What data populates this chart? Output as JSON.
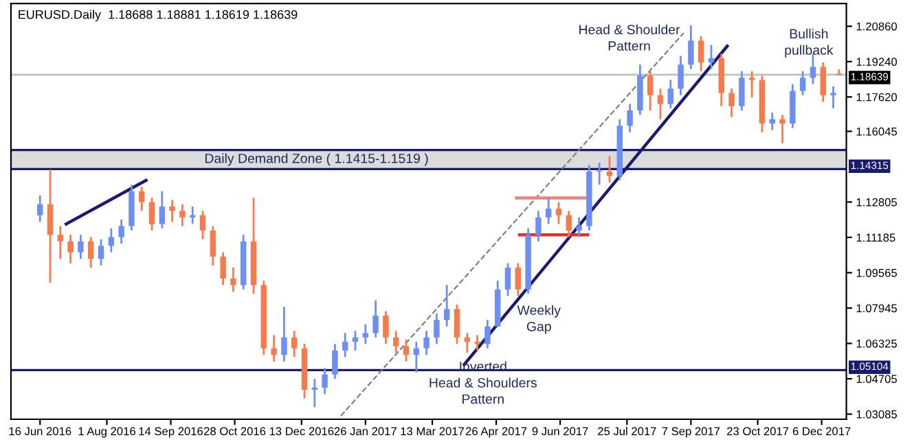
{
  "chart_data": {
    "type": "candlestick",
    "title": "EURUSD.Daily  1.18688 1.18881 1.18619 1.18639",
    "x": [
      "2016-06-16",
      "2016-06-23",
      "2016-06-30",
      "2016-07-07",
      "2016-07-14",
      "2016-07-21",
      "2016-07-28",
      "2016-08-04",
      "2016-08-11",
      "2016-08-18",
      "2016-08-25",
      "2016-09-01",
      "2016-09-08",
      "2016-09-15",
      "2016-09-22",
      "2016-09-29",
      "2016-10-06",
      "2016-10-13",
      "2016-10-20",
      "2016-10-27",
      "2016-11-03",
      "2016-11-10",
      "2016-11-17",
      "2016-11-24",
      "2016-12-01",
      "2016-12-08",
      "2016-12-15",
      "2016-12-22",
      "2016-12-29",
      "2017-01-05",
      "2017-01-12",
      "2017-01-19",
      "2017-01-26",
      "2017-02-02",
      "2017-02-09",
      "2017-02-16",
      "2017-02-23",
      "2017-03-02",
      "2017-03-09",
      "2017-03-16",
      "2017-03-23",
      "2017-03-30",
      "2017-04-06",
      "2017-04-13",
      "2017-04-20",
      "2017-04-27",
      "2017-05-04",
      "2017-05-11",
      "2017-05-18",
      "2017-05-25",
      "2017-06-01",
      "2017-06-08",
      "2017-06-15",
      "2017-06-22",
      "2017-06-29",
      "2017-07-06",
      "2017-07-13",
      "2017-07-20",
      "2017-07-27",
      "2017-08-03",
      "2017-08-10",
      "2017-08-17",
      "2017-08-24",
      "2017-08-31",
      "2017-09-07",
      "2017-09-14",
      "2017-09-21",
      "2017-09-28",
      "2017-10-05",
      "2017-10-12",
      "2017-10-19",
      "2017-10-26",
      "2017-11-02",
      "2017-11-09",
      "2017-11-16",
      "2017-11-23",
      "2017-11-30",
      "2017-12-07",
      "2017-12-14",
      "2017-12-18"
    ],
    "ohlc": [
      [
        1.122,
        1.131,
        1.119,
        1.127
      ],
      [
        1.127,
        1.143,
        1.091,
        1.113
      ],
      [
        1.113,
        1.117,
        1.102,
        1.11
      ],
      [
        1.11,
        1.113,
        1.1,
        1.105
      ],
      [
        1.105,
        1.113,
        1.102,
        1.11
      ],
      [
        1.11,
        1.112,
        1.098,
        1.102
      ],
      [
        1.102,
        1.111,
        1.099,
        1.108
      ],
      [
        1.108,
        1.116,
        1.105,
        1.112
      ],
      [
        1.112,
        1.12,
        1.109,
        1.117
      ],
      [
        1.117,
        1.136,
        1.115,
        1.133
      ],
      [
        1.133,
        1.135,
        1.124,
        1.128
      ],
      [
        1.128,
        1.13,
        1.115,
        1.118
      ],
      [
        1.118,
        1.133,
        1.116,
        1.126
      ],
      [
        1.126,
        1.129,
        1.119,
        1.124
      ],
      [
        1.124,
        1.127,
        1.117,
        1.121
      ],
      [
        1.121,
        1.126,
        1.118,
        1.122
      ],
      [
        1.122,
        1.124,
        1.111,
        1.115
      ],
      [
        1.115,
        1.117,
        1.099,
        1.103
      ],
      [
        1.103,
        1.105,
        1.09,
        1.093
      ],
      [
        1.093,
        1.098,
        1.087,
        1.09
      ],
      [
        1.09,
        1.113,
        1.088,
        1.11
      ],
      [
        1.11,
        1.13,
        1.086,
        1.09
      ],
      [
        1.09,
        1.092,
        1.058,
        1.061
      ],
      [
        1.061,
        1.067,
        1.055,
        1.058
      ],
      [
        1.058,
        1.08,
        1.055,
        1.066
      ],
      [
        1.066,
        1.069,
        1.057,
        1.061
      ],
      [
        1.061,
        1.063,
        1.038,
        1.042
      ],
      [
        1.042,
        1.047,
        1.034,
        1.043
      ],
      [
        1.043,
        1.052,
        1.04,
        1.049
      ],
      [
        1.049,
        1.063,
        1.047,
        1.06
      ],
      [
        1.06,
        1.068,
        1.057,
        1.064
      ],
      [
        1.064,
        1.069,
        1.06,
        1.066
      ],
      [
        1.066,
        1.072,
        1.063,
        1.068
      ],
      [
        1.068,
        1.083,
        1.066,
        1.076
      ],
      [
        1.076,
        1.078,
        1.063,
        1.066
      ],
      [
        1.066,
        1.069,
        1.059,
        1.062
      ],
      [
        1.062,
        1.065,
        1.055,
        1.058
      ],
      [
        1.058,
        1.064,
        1.05,
        1.061
      ],
      [
        1.061,
        1.069,
        1.058,
        1.066
      ],
      [
        1.066,
        1.077,
        1.063,
        1.074
      ],
      [
        1.074,
        1.09,
        1.071,
        1.079
      ],
      [
        1.079,
        1.081,
        1.063,
        1.066
      ],
      [
        1.066,
        1.068,
        1.059,
        1.064
      ],
      [
        1.064,
        1.067,
        1.06,
        1.063
      ],
      [
        1.063,
        1.074,
        1.061,
        1.071
      ],
      [
        1.071,
        1.092,
        1.071,
        1.088
      ],
      [
        1.088,
        1.1,
        1.085,
        1.098
      ],
      [
        1.098,
        1.1,
        1.085,
        1.088
      ],
      [
        1.088,
        1.116,
        1.086,
        1.113
      ],
      [
        1.113,
        1.124,
        1.11,
        1.121
      ],
      [
        1.121,
        1.13,
        1.118,
        1.125
      ],
      [
        1.125,
        1.128,
        1.118,
        1.122
      ],
      [
        1.122,
        1.124,
        1.112,
        1.115
      ],
      [
        1.115,
        1.121,
        1.112,
        1.117
      ],
      [
        1.117,
        1.145,
        1.115,
        1.142
      ],
      [
        1.142,
        1.146,
        1.136,
        1.142
      ],
      [
        1.142,
        1.149,
        1.137,
        1.14
      ],
      [
        1.14,
        1.166,
        1.138,
        1.163
      ],
      [
        1.163,
        1.173,
        1.16,
        1.17
      ],
      [
        1.17,
        1.191,
        1.168,
        1.186
      ],
      [
        1.186,
        1.188,
        1.17,
        1.177
      ],
      [
        1.177,
        1.18,
        1.166,
        1.173
      ],
      [
        1.173,
        1.184,
        1.171,
        1.18
      ],
      [
        1.18,
        1.195,
        1.177,
        1.191
      ],
      [
        1.191,
        1.209,
        1.189,
        1.202
      ],
      [
        1.202,
        1.204,
        1.188,
        1.192
      ],
      [
        1.192,
        1.2,
        1.189,
        1.194
      ],
      [
        1.194,
        1.196,
        1.172,
        1.178
      ],
      [
        1.178,
        1.18,
        1.167,
        1.172
      ],
      [
        1.172,
        1.188,
        1.17,
        1.185
      ],
      [
        1.185,
        1.188,
        1.176,
        1.184
      ],
      [
        1.184,
        1.186,
        1.16,
        1.164
      ],
      [
        1.164,
        1.169,
        1.161,
        1.166
      ],
      [
        1.166,
        1.168,
        1.155,
        1.164
      ],
      [
        1.164,
        1.182,
        1.162,
        1.179
      ],
      [
        1.179,
        1.188,
        1.177,
        1.185
      ],
      [
        1.185,
        1.196,
        1.182,
        1.19
      ],
      [
        1.19,
        1.192,
        1.174,
        1.177
      ],
      [
        1.177,
        1.181,
        1.171,
        1.178
      ],
      [
        1.18688,
        1.18881,
        1.18619,
        1.18639
      ]
    ],
    "colors": [
      "#6d8ef2",
      "#f57a4c",
      "#f57a4c",
      "#f57a4c",
      "#6d8ef2",
      "#f57a4c",
      "#6d8ef2",
      "#6d8ef2",
      "#6d8ef2",
      "#6d8ef2",
      "#f57a4c",
      "#f57a4c",
      "#6d8ef2",
      "#f57a4c",
      "#f57a4c",
      "#6d8ef2",
      "#f57a4c",
      "#f57a4c",
      "#f57a4c",
      "#f57a4c",
      "#6d8ef2",
      "#f57a4c",
      "#f57a4c",
      "#f57a4c",
      "#6d8ef2",
      "#f57a4c",
      "#f57a4c",
      "#6d8ef2",
      "#6d8ef2",
      "#6d8ef2",
      "#6d8ef2",
      "#6d8ef2",
      "#6d8ef2",
      "#6d8ef2",
      "#f57a4c",
      "#f57a4c",
      "#f57a4c",
      "#6d8ef2",
      "#6d8ef2",
      "#6d8ef2",
      "#6d8ef2",
      "#f57a4c",
      "#f57a4c",
      "#f57a4c",
      "#6d8ef2",
      "#6d8ef2",
      "#6d8ef2",
      "#f57a4c",
      "#6d8ef2",
      "#6d8ef2",
      "#6d8ef2",
      "#f57a4c",
      "#f57a4c",
      "#6d8ef2",
      "#6d8ef2",
      "#6d8ef2",
      "#f57a4c",
      "#6d8ef2",
      "#6d8ef2",
      "#6d8ef2",
      "#f57a4c",
      "#f57a4c",
      "#6d8ef2",
      "#6d8ef2",
      "#6d8ef2",
      "#f57a4c",
      "#6d8ef2",
      "#f57a4c",
      "#f57a4c",
      "#6d8ef2",
      "#f57a4c",
      "#f57a4c",
      "#6d8ef2",
      "#f57a4c",
      "#6d8ef2",
      "#6d8ef2",
      "#6d8ef2",
      "#f57a4c",
      "#6d8ef2",
      "#f57a4c"
    ],
    "series": [
      {
        "type": "line",
        "x": [
          "2016-07-04",
          "2016-08-28"
        ],
        "values": [
          1.118,
          1.138
        ],
        "color": "#1a1a6e",
        "line_style": "solid"
      },
      {
        "type": "line",
        "x": [
          "2017-04-04",
          "2017-10-02"
        ],
        "values": [
          1.0536,
          1.1995
        ],
        "color": "#1a1a6e",
        "line_style": "solid"
      },
      {
        "type": "line",
        "x": [
          "2017-01-09",
          "2017-09-02"
        ],
        "values": [
          1.03,
          1.2055
        ],
        "color": "#808080",
        "line_style": "dashed"
      },
      {
        "type": "line",
        "x": [
          "2017-05-10",
          "2017-06-28"
        ],
        "values": [
          1.1299,
          1.1299
        ],
        "color": "#f08080",
        "line_style": "solid"
      },
      {
        "type": "line",
        "x": [
          "2017-05-12",
          "2017-06-28"
        ],
        "values": [
          1.113,
          1.113
        ],
        "color": "#e03030",
        "line_style": "solid"
      }
    ],
    "bands": [
      {
        "axis": "y",
        "from": 1.14315,
        "to": 1.1519,
        "label": "Daily Demand Zone ( 1.1415-1.1519 )",
        "color": "#dcdcdc"
      }
    ],
    "ref_lines": [
      {
        "axis": "y",
        "value": 1.18639,
        "label": "1.18639",
        "color": "#c0c0c0"
      },
      {
        "axis": "y",
        "value": 1.1519,
        "color": "#1a1a6e"
      },
      {
        "axis": "y",
        "value": 1.14315,
        "label": "1.14315",
        "color": "#1a1a6e"
      },
      {
        "axis": "y",
        "value": 1.05104,
        "label": "1.05104",
        "color": "#1a1a6e"
      }
    ],
    "annotations": [
      "Head & Shoulder\nPattern",
      "Bullish\npullback",
      "Weekly\nGap",
      "Inverted\nHead & Shoulders\nPattern"
    ],
    "xlim": [
      "2016-05-27",
      "2017-12-23"
    ],
    "xticks": [
      {
        "value": "2016-06-16",
        "label": "16 Jun 2016"
      },
      {
        "value": "2016-08-01",
        "label": "1 Aug 2016"
      },
      {
        "value": "2016-09-14",
        "label": "14 Sep 2016"
      },
      {
        "value": "2016-10-28",
        "label": "28 Oct 2016"
      },
      {
        "value": "2016-12-13",
        "label": "13 Dec 2016"
      },
      {
        "value": "2017-01-26",
        "label": "26 Jan 2017"
      },
      {
        "value": "2017-03-13",
        "label": "13 Mar 2017"
      },
      {
        "value": "2017-04-26",
        "label": "26 Apr 2017"
      },
      {
        "value": "2017-06-09",
        "label": "9 Jun 2017"
      },
      {
        "value": "2017-07-25",
        "label": "25 Jul 2017"
      },
      {
        "value": "2017-09-07",
        "label": "7 Sep 2017"
      },
      {
        "value": "2017-10-23",
        "label": "23 Oct 2017"
      },
      {
        "value": "2017-12-06",
        "label": "6 Dec 2017"
      }
    ],
    "ylim": [
      1.0285,
      1.219
    ],
    "yticks": [
      {
        "value": 1.2086,
        "label": "1.20860"
      },
      {
        "value": 1.1924,
        "label": "1.19240"
      },
      {
        "value": 1.1762,
        "label": "1.17620"
      },
      {
        "value": 1.16045,
        "label": "1.16045"
      },
      {
        "value": 1.12805,
        "label": "1.12805"
      },
      {
        "value": 1.11185,
        "label": "1.11185"
      },
      {
        "value": 1.09565,
        "label": "1.09565"
      },
      {
        "value": 1.07945,
        "label": "1.07945"
      },
      {
        "value": 1.06325,
        "label": "1.06325"
      },
      {
        "value": 1.04705,
        "label": "1.04705"
      },
      {
        "value": 1.03085,
        "label": "1.03085"
      }
    ],
    "grid": false
  }
}
